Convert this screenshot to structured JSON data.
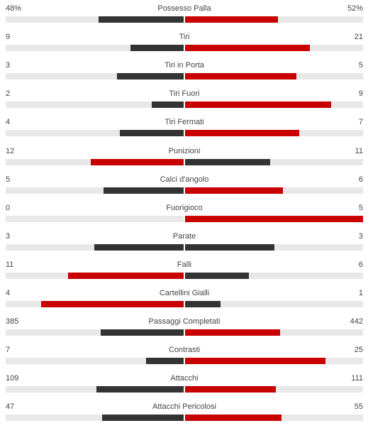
{
  "colors": {
    "winner": "#c80000",
    "other": "#333333",
    "track": "#e8e8e8"
  },
  "stats": [
    {
      "label": "Possesso Palla",
      "home": "48%",
      "away": "52%",
      "home_fill": 0.48,
      "away_fill": 0.52
    },
    {
      "label": "Tiri",
      "home": "9",
      "away": "21",
      "home_fill": 0.3,
      "away_fill": 0.7
    },
    {
      "label": "Tiri in Porta",
      "home": "3",
      "away": "5",
      "home_fill": 0.375,
      "away_fill": 0.625
    },
    {
      "label": "Tiri Fuori",
      "home": "2",
      "away": "9",
      "home_fill": 0.18,
      "away_fill": 0.82
    },
    {
      "label": "Tiri Fermati",
      "home": "4",
      "away": "7",
      "home_fill": 0.36,
      "away_fill": 0.64
    },
    {
      "label": "Punizioni",
      "home": "12",
      "away": "11",
      "home_fill": 0.52,
      "away_fill": 0.48
    },
    {
      "label": "Calci d'angolo",
      "home": "5",
      "away": "6",
      "home_fill": 0.45,
      "away_fill": 0.55
    },
    {
      "label": "Fuorigioco",
      "home": "0",
      "away": "5",
      "home_fill": 0.0,
      "away_fill": 1.0
    },
    {
      "label": "Parate",
      "home": "3",
      "away": "3",
      "home_fill": 0.5,
      "away_fill": 0.5
    },
    {
      "label": "Falli",
      "home": "11",
      "away": "6",
      "home_fill": 0.65,
      "away_fill": 0.36
    },
    {
      "label": "Cartellini Gialli",
      "home": "4",
      "away": "1",
      "home_fill": 0.8,
      "away_fill": 0.2
    },
    {
      "label": "Passaggi Completati",
      "home": "385",
      "away": "442",
      "home_fill": 0.465,
      "away_fill": 0.535
    },
    {
      "label": "Contrasti",
      "home": "7",
      "away": "25",
      "home_fill": 0.21,
      "away_fill": 0.79
    },
    {
      "label": "Attacchi",
      "home": "109",
      "away": "111",
      "home_fill": 0.49,
      "away_fill": 0.51
    },
    {
      "label": "Attacchi Pericolosi",
      "home": "47",
      "away": "55",
      "home_fill": 0.46,
      "away_fill": 0.54
    }
  ]
}
